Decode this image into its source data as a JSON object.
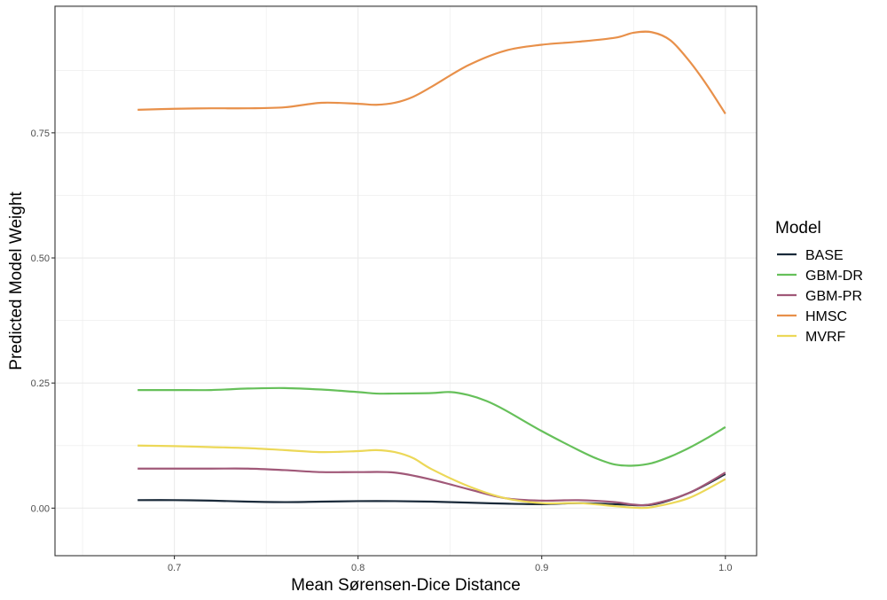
{
  "chart_data": {
    "type": "line",
    "xlabel": "Mean Sørensen-Dice Distance",
    "ylabel": "Predicted Model Weight",
    "xlim": [
      0.635,
      1.017
    ],
    "ylim": [
      -0.095,
      1.003
    ],
    "x_ticks": [
      0.7,
      0.8,
      0.9,
      1.0
    ],
    "x_tick_labels": [
      "0.7",
      "0.8",
      "0.9",
      "1.0"
    ],
    "y_ticks": [
      0.0,
      0.25,
      0.5,
      0.75
    ],
    "y_tick_labels": [
      "0.00",
      "0.25",
      "0.50",
      "0.75"
    ],
    "grid": true,
    "legend": {
      "title": "Model",
      "placement": "right"
    },
    "series": [
      {
        "name": "BASE",
        "color": "#1a2a3a",
        "points": [
          [
            0.68,
            0.016
          ],
          [
            0.7,
            0.016
          ],
          [
            0.72,
            0.015
          ],
          [
            0.74,
            0.013
          ],
          [
            0.76,
            0.012
          ],
          [
            0.78,
            0.013
          ],
          [
            0.8,
            0.014
          ],
          [
            0.82,
            0.014
          ],
          [
            0.84,
            0.013
          ],
          [
            0.86,
            0.011
          ],
          [
            0.88,
            0.009
          ],
          [
            0.9,
            0.008
          ],
          [
            0.92,
            0.01
          ],
          [
            0.94,
            0.008
          ],
          [
            0.96,
            0.007
          ],
          [
            0.98,
            0.03
          ],
          [
            1.0,
            0.068
          ]
        ]
      },
      {
        "name": "GBM-DR",
        "color": "#66c05a",
        "points": [
          [
            0.68,
            0.236
          ],
          [
            0.7,
            0.236
          ],
          [
            0.72,
            0.236
          ],
          [
            0.74,
            0.239
          ],
          [
            0.76,
            0.24
          ],
          [
            0.78,
            0.237
          ],
          [
            0.8,
            0.232
          ],
          [
            0.81,
            0.229
          ],
          [
            0.82,
            0.229
          ],
          [
            0.84,
            0.23
          ],
          [
            0.85,
            0.232
          ],
          [
            0.86,
            0.226
          ],
          [
            0.87,
            0.214
          ],
          [
            0.88,
            0.196
          ],
          [
            0.9,
            0.154
          ],
          [
            0.92,
            0.116
          ],
          [
            0.93,
            0.099
          ],
          [
            0.94,
            0.087
          ],
          [
            0.95,
            0.085
          ],
          [
            0.96,
            0.09
          ],
          [
            0.97,
            0.103
          ],
          [
            0.98,
            0.12
          ],
          [
            0.99,
            0.14
          ],
          [
            1.0,
            0.162
          ]
        ]
      },
      {
        "name": "GBM-PR",
        "color": "#a05878",
        "points": [
          [
            0.68,
            0.079
          ],
          [
            0.7,
            0.079
          ],
          [
            0.72,
            0.079
          ],
          [
            0.74,
            0.079
          ],
          [
            0.76,
            0.076
          ],
          [
            0.78,
            0.072
          ],
          [
            0.8,
            0.072
          ],
          [
            0.82,
            0.071
          ],
          [
            0.84,
            0.057
          ],
          [
            0.86,
            0.038
          ],
          [
            0.88,
            0.02
          ],
          [
            0.9,
            0.015
          ],
          [
            0.92,
            0.016
          ],
          [
            0.94,
            0.012
          ],
          [
            0.95,
            0.007
          ],
          [
            0.96,
            0.008
          ],
          [
            0.98,
            0.03
          ],
          [
            1.0,
            0.071
          ]
        ]
      },
      {
        "name": "HMSC",
        "color": "#e8904a",
        "points": [
          [
            0.68,
            0.796
          ],
          [
            0.7,
            0.798
          ],
          [
            0.72,
            0.799
          ],
          [
            0.74,
            0.799
          ],
          [
            0.76,
            0.801
          ],
          [
            0.78,
            0.81
          ],
          [
            0.8,
            0.808
          ],
          [
            0.81,
            0.806
          ],
          [
            0.82,
            0.81
          ],
          [
            0.83,
            0.822
          ],
          [
            0.84,
            0.842
          ],
          [
            0.86,
            0.885
          ],
          [
            0.88,
            0.914
          ],
          [
            0.9,
            0.926
          ],
          [
            0.92,
            0.932
          ],
          [
            0.94,
            0.94
          ],
          [
            0.95,
            0.95
          ],
          [
            0.96,
            0.951
          ],
          [
            0.97,
            0.935
          ],
          [
            0.98,
            0.895
          ],
          [
            0.99,
            0.845
          ],
          [
            1.0,
            0.788
          ]
        ]
      },
      {
        "name": "MVRF",
        "color": "#ecd858",
        "points": [
          [
            0.68,
            0.125
          ],
          [
            0.7,
            0.124
          ],
          [
            0.72,
            0.122
          ],
          [
            0.74,
            0.12
          ],
          [
            0.76,
            0.116
          ],
          [
            0.78,
            0.112
          ],
          [
            0.8,
            0.114
          ],
          [
            0.81,
            0.116
          ],
          [
            0.82,
            0.112
          ],
          [
            0.83,
            0.1
          ],
          [
            0.84,
            0.078
          ],
          [
            0.86,
            0.044
          ],
          [
            0.88,
            0.02
          ],
          [
            0.9,
            0.01
          ],
          [
            0.92,
            0.01
          ],
          [
            0.94,
            0.004
          ],
          [
            0.95,
            0.001
          ],
          [
            0.96,
            0.002
          ],
          [
            0.98,
            0.02
          ],
          [
            1.0,
            0.058
          ]
        ]
      }
    ]
  }
}
